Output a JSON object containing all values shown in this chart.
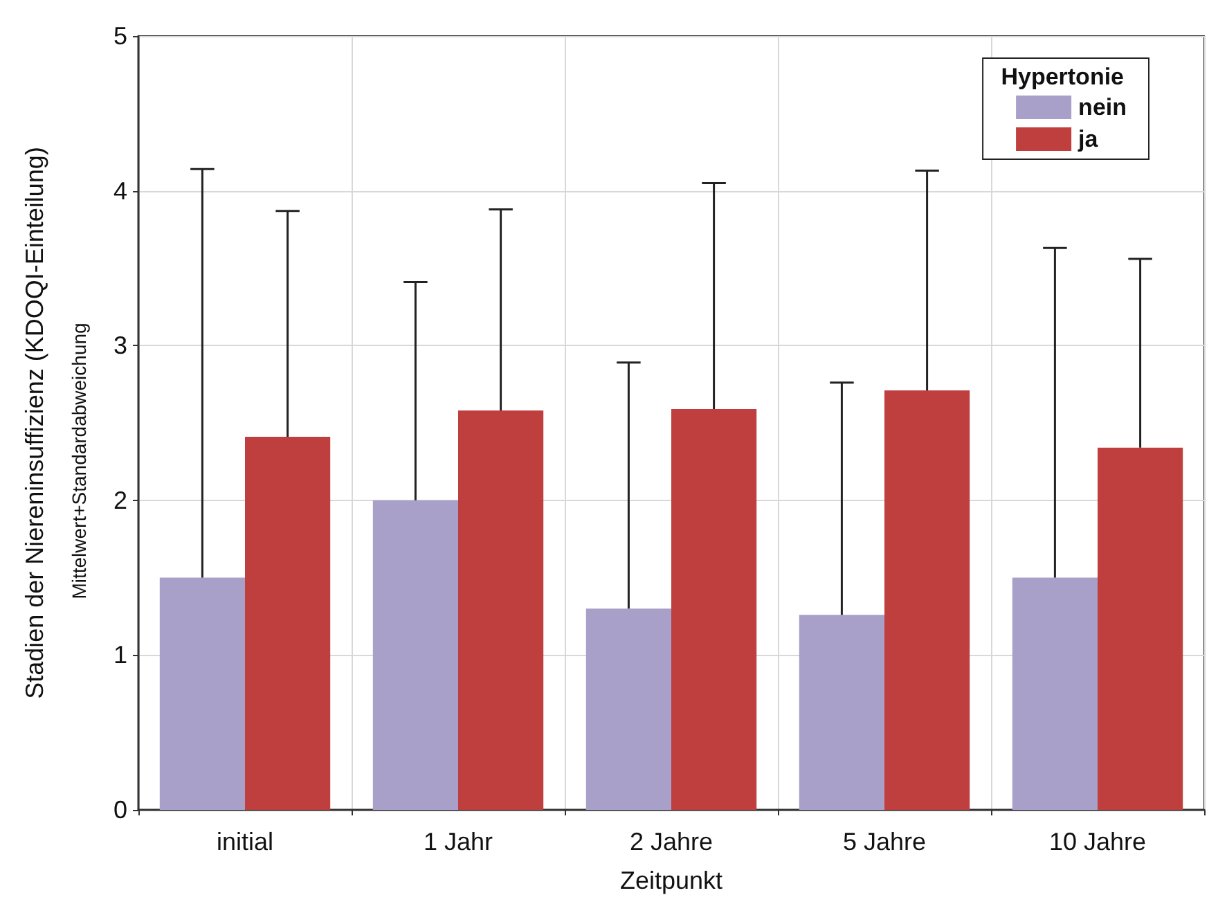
{
  "chart_data": {
    "type": "bar",
    "categories": [
      "initial",
      "1 Jahr",
      "2 Jahre",
      "5 Jahre",
      "10 Jahre"
    ],
    "series": [
      {
        "name": "nein",
        "color": "#a8a0c8",
        "values": [
          1.5,
          2.0,
          1.3,
          1.26,
          1.5
        ],
        "errors": [
          [
            1.5,
            4.14
          ],
          [
            2.0,
            3.41
          ],
          [
            1.3,
            2.89
          ],
          [
            1.26,
            2.76
          ],
          [
            1.5,
            3.63
          ]
        ]
      },
      {
        "name": "ja",
        "color": "#bf3e3e",
        "values": [
          2.41,
          2.58,
          2.59,
          2.71,
          2.34
        ],
        "errors": [
          [
            2.41,
            3.87
          ],
          [
            2.58,
            3.88
          ],
          [
            2.59,
            4.05
          ],
          [
            2.71,
            4.13
          ],
          [
            2.34,
            3.56
          ]
        ]
      }
    ],
    "xlabel": "Zeitpunkt",
    "ylabel": "Stadien der Niereninsuffizienz (KDOQI-Einteilung)",
    "annotations": [
      "Mittelwert+Standardabweichung"
    ],
    "legend_title": "Hypertonie",
    "legend": "top right",
    "ylim": [
      0,
      5
    ],
    "yticks": [
      0,
      1,
      2,
      3,
      4,
      5
    ],
    "grid": true
  }
}
